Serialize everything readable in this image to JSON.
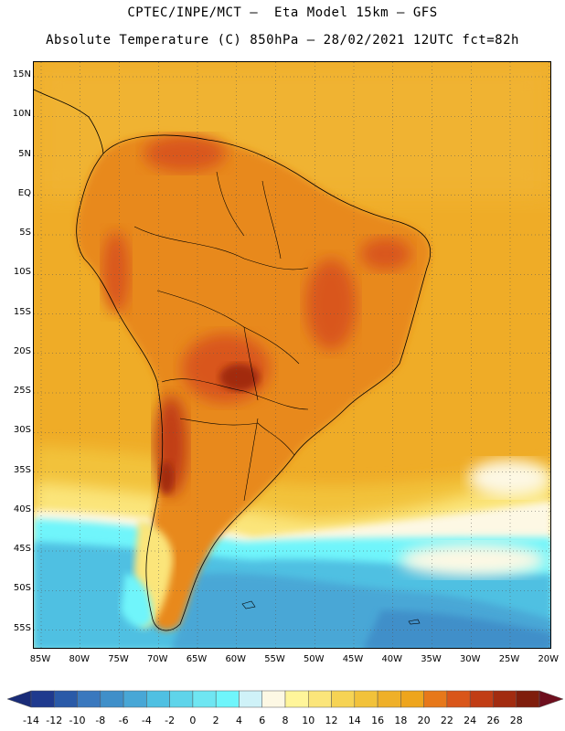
{
  "header": {
    "title_line1": "CPTEC/INPE/MCT –  Eta Model 15km – GFS",
    "title_line2": "Absolute Temperature (C) 850hPa – 28/02/2021 12UTC fct=82h"
  },
  "axes": {
    "lat_labels": [
      "15N",
      "10N",
      "5N",
      "EQ",
      "5S",
      "10S",
      "15S",
      "20S",
      "25S",
      "30S",
      "35S",
      "40S",
      "45S",
      "50S",
      "55S"
    ],
    "lon_labels": [
      "85W",
      "80W",
      "75W",
      "70W",
      "65W",
      "60W",
      "55W",
      "50W",
      "45W",
      "40W",
      "35W",
      "30W",
      "25W",
      "20W"
    ]
  },
  "legend": {
    "labels": [
      "-14",
      "-12",
      "-10",
      "-8",
      "-6",
      "-4",
      "-2",
      "0",
      "2",
      "4",
      "6",
      "8",
      "10",
      "12",
      "14",
      "16",
      "18",
      "20",
      "22",
      "24",
      "26",
      "28"
    ],
    "colors": [
      "#1f3a8e",
      "#2a5aa8",
      "#3a78be",
      "#3f8fc9",
      "#48a7d6",
      "#4fc0e2",
      "#5fd4ea",
      "#6fe6f2",
      "#6ff5fb",
      "#cff2f8",
      "#fdf8e4",
      "#fff59a",
      "#fbe57a",
      "#f6d354",
      "#f2c23a",
      "#efb029",
      "#eea51d",
      "#e7781a",
      "#d9561a",
      "#c13d15",
      "#a22c10",
      "#7f1e0c"
    ],
    "under_color": "#1a2c78",
    "over_color": "#6e0f1e"
  }
}
